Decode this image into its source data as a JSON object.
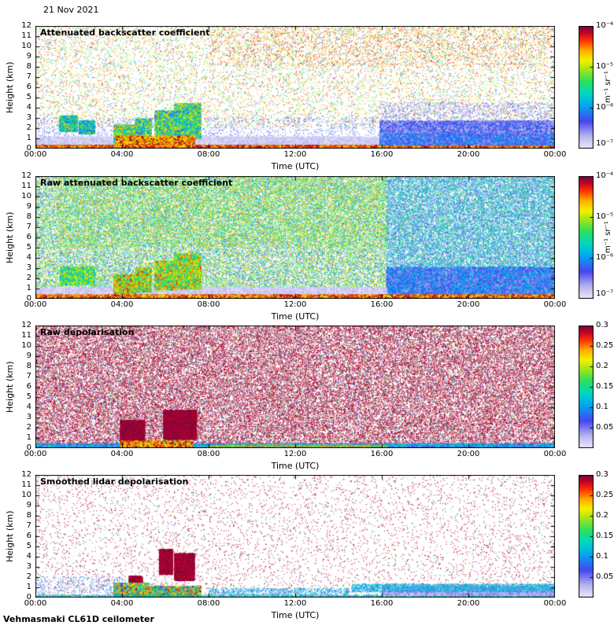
{
  "page": {
    "date": "21 Nov 2021",
    "footer": "Vehmasmaki CL61D ceilometer"
  },
  "colormap": {
    "anchors": [
      {
        "t": 0.0,
        "color": "#eae8fb"
      },
      {
        "t": 0.1,
        "color": "#b6b2ee"
      },
      {
        "t": 0.22,
        "color": "#4646f0"
      },
      {
        "t": 0.35,
        "color": "#00a8f0"
      },
      {
        "t": 0.45,
        "color": "#00d8c0"
      },
      {
        "t": 0.55,
        "color": "#2ce05c"
      },
      {
        "t": 0.65,
        "color": "#a6e616"
      },
      {
        "t": 0.72,
        "color": "#f2f200"
      },
      {
        "t": 0.8,
        "color": "#ffae00"
      },
      {
        "t": 0.88,
        "color": "#ff3400"
      },
      {
        "t": 0.95,
        "color": "#c00028"
      },
      {
        "t": 1.0,
        "color": "#6e0a46"
      }
    ]
  },
  "chart_data": [
    {
      "type": "heatmap",
      "title": "Attenuated backscatter coefficient",
      "xlabel": "Time (UTC)",
      "ylabel": "Height (km)",
      "x_range_hours": [
        0,
        24
      ],
      "y_range_km": [
        0,
        12
      ],
      "x_ticks": [
        {
          "label": "00:00",
          "hour": 0
        },
        {
          "label": "04:00",
          "hour": 4
        },
        {
          "label": "08:00",
          "hour": 8
        },
        {
          "label": "12:00",
          "hour": 12
        },
        {
          "label": "16:00",
          "hour": 16
        },
        {
          "label": "20:00",
          "hour": 20
        },
        {
          "label": "00:00",
          "hour": 24
        }
      ],
      "y_ticks": [
        0,
        1,
        2,
        3,
        4,
        5,
        6,
        7,
        8,
        9,
        10,
        11,
        12
      ],
      "colorbar": {
        "scale": "log",
        "range": [
          1e-07,
          0.0001
        ],
        "label": "m⁻¹ sr⁻¹",
        "ticks": [
          {
            "label": "10⁻⁴",
            "value": 0.0001
          },
          {
            "label": "10⁻⁵",
            "value": 1e-05
          },
          {
            "label": "10⁻⁶",
            "value": 1e-06
          },
          {
            "label": "10⁻⁷",
            "value": 1e-07
          }
        ]
      },
      "seed": 11,
      "layers": [
        {
          "x": [
            0,
            24
          ],
          "y": [
            2,
            12
          ],
          "n": 9000,
          "t": [
            0.55,
            0.95
          ],
          "s": 1
        },
        {
          "x": [
            8,
            24
          ],
          "y": [
            8,
            12
          ],
          "n": 2500,
          "t": [
            0.7,
            1.0
          ],
          "s": 1
        },
        {
          "x": [
            0,
            24
          ],
          "y": [
            1.5,
            12
          ],
          "n": 2200,
          "t": [
            0.25,
            0.55
          ],
          "s": 1
        },
        {
          "x": [
            0,
            24
          ],
          "y": [
            1,
            12
          ],
          "n": 900,
          "t": [
            0.05,
            0.22
          ],
          "s": 1
        },
        {
          "x": [
            0,
            16
          ],
          "y": [
            0.8,
            3
          ],
          "n": 1600,
          "t": [
            0.1,
            0.3
          ],
          "s": 1
        },
        {
          "x": [
            0,
            16.2
          ],
          "y": [
            0.2,
            1.05
          ],
          "n": 7000,
          "t": [
            0.0,
            0.1
          ],
          "s": 2
        },
        {
          "x": [
            1.1,
            1.9
          ],
          "y": [
            1.6,
            3.1
          ],
          "n": 1800,
          "t": [
            0.2,
            0.7
          ],
          "s": 2
        },
        {
          "x": [
            2.0,
            2.7
          ],
          "y": [
            1.4,
            2.6
          ],
          "n": 1200,
          "t": [
            0.2,
            0.65
          ],
          "s": 2
        },
        {
          "x": [
            3.6,
            4.6
          ],
          "y": [
            0.4,
            2.2
          ],
          "n": 2600,
          "t": [
            0.3,
            0.85
          ],
          "s": 2
        },
        {
          "x": [
            4.6,
            5.3
          ],
          "y": [
            0.6,
            2.8
          ],
          "n": 1500,
          "t": [
            0.25,
            0.8
          ],
          "s": 2
        },
        {
          "x": [
            5.5,
            6.4
          ],
          "y": [
            0.8,
            3.6
          ],
          "n": 2400,
          "t": [
            0.25,
            0.8
          ],
          "s": 2
        },
        {
          "x": [
            6.4,
            7.6
          ],
          "y": [
            0.9,
            4.3
          ],
          "n": 2600,
          "t": [
            0.25,
            0.8
          ],
          "s": 2
        },
        {
          "x": [
            3.7,
            7.3
          ],
          "y": [
            0.0,
            1.1
          ],
          "n": 3200,
          "t": [
            0.65,
            1.0
          ],
          "s": 2
        },
        {
          "x": [
            0,
            16.2
          ],
          "y": [
            0,
            0.22
          ],
          "n": 4200,
          "t": [
            0.7,
            1.0
          ],
          "s": 2
        },
        {
          "x": [
            15.9,
            24
          ],
          "y": [
            0,
            2.6
          ],
          "n": 15000,
          "t": [
            0.07,
            0.3
          ],
          "s": 2
        },
        {
          "x": [
            15.9,
            24
          ],
          "y": [
            0,
            1.3
          ],
          "n": 8000,
          "t": [
            0.1,
            0.38
          ],
          "s": 2
        },
        {
          "x": [
            15.9,
            24
          ],
          "y": [
            2.6,
            4.5
          ],
          "n": 1200,
          "t": [
            0.07,
            0.25
          ],
          "s": 1
        },
        {
          "x": [
            15.9,
            24
          ],
          "y": [
            0,
            0.12
          ],
          "n": 1800,
          "t": [
            0.7,
            1.0
          ],
          "s": 2
        }
      ]
    },
    {
      "type": "heatmap",
      "title": "Raw attenuated backscatter coefficient",
      "xlabel": "Time (UTC)",
      "ylabel": "Height (km)",
      "x_range_hours": [
        0,
        24
      ],
      "y_range_km": [
        0,
        12
      ],
      "x_ticks": [
        {
          "label": "00:00",
          "hour": 0
        },
        {
          "label": "04:00",
          "hour": 4
        },
        {
          "label": "08:00",
          "hour": 8
        },
        {
          "label": "12:00",
          "hour": 12
        },
        {
          "label": "16:00",
          "hour": 16
        },
        {
          "label": "20:00",
          "hour": 20
        },
        {
          "label": "00:00",
          "hour": 24
        }
      ],
      "y_ticks": [
        0,
        1,
        2,
        3,
        4,
        5,
        6,
        7,
        8,
        9,
        10,
        11,
        12
      ],
      "colorbar": {
        "scale": "log",
        "range": [
          1e-07,
          0.0001
        ],
        "label": "m⁻¹ sr⁻¹",
        "ticks": [
          {
            "label": "10⁻⁴",
            "value": 0.0001
          },
          {
            "label": "10⁻⁵",
            "value": 1e-05
          },
          {
            "label": "10⁻⁶",
            "value": 1e-06
          },
          {
            "label": "10⁻⁷",
            "value": 1e-07
          }
        ]
      },
      "seed": 22,
      "layers": [
        {
          "x": [
            0,
            16.2
          ],
          "y": [
            0.9,
            12
          ],
          "n": 40000,
          "t": [
            0.18,
            0.78
          ],
          "s": 1
        },
        {
          "x": [
            1,
            16.2
          ],
          "y": [
            5,
            12
          ],
          "n": 10000,
          "t": [
            0.4,
            0.8
          ],
          "s": 1
        },
        {
          "x": [
            0,
            16.2
          ],
          "y": [
            1,
            12
          ],
          "n": 4000,
          "t": [
            0.6,
            0.9
          ],
          "s": 1
        },
        {
          "x": [
            16.2,
            24
          ],
          "y": [
            0.4,
            12
          ],
          "n": 30000,
          "t": [
            0.1,
            0.6
          ],
          "s": 1
        },
        {
          "x": [
            16.2,
            24
          ],
          "y": [
            0,
            3
          ],
          "n": 8000,
          "t": [
            0.1,
            0.4
          ],
          "s": 2
        },
        {
          "x": [
            0,
            16.2
          ],
          "y": [
            0.3,
            1.0
          ],
          "n": 5000,
          "t": [
            0,
            0.1
          ],
          "s": 2
        },
        {
          "x": [
            1.1,
            2.7
          ],
          "y": [
            1.3,
            3.0
          ],
          "n": 2000,
          "t": [
            0.35,
            0.8
          ],
          "s": 2
        },
        {
          "x": [
            3.6,
            4.6
          ],
          "y": [
            0.4,
            2.2
          ],
          "n": 2800,
          "t": [
            0.45,
            0.95
          ],
          "s": 2
        },
        {
          "x": [
            4.6,
            5.3
          ],
          "y": [
            0.6,
            2.9
          ],
          "n": 1600,
          "t": [
            0.4,
            0.9
          ],
          "s": 2
        },
        {
          "x": [
            5.5,
            6.4
          ],
          "y": [
            0.8,
            3.6
          ],
          "n": 2600,
          "t": [
            0.4,
            0.9
          ],
          "s": 2
        },
        {
          "x": [
            6.4,
            7.6
          ],
          "y": [
            0.9,
            4.3
          ],
          "n": 2800,
          "t": [
            0.4,
            0.9
          ],
          "s": 2
        },
        {
          "x": [
            0,
            24
          ],
          "y": [
            0,
            0.28
          ],
          "n": 6500,
          "t": [
            0.7,
            1.0
          ],
          "s": 2
        }
      ]
    },
    {
      "type": "heatmap",
      "title": "Raw depolarisation",
      "xlabel": "Time (UTC)",
      "ylabel": "Height (km)",
      "x_range_hours": [
        0,
        24
      ],
      "y_range_km": [
        0,
        12
      ],
      "x_ticks": [
        {
          "label": "00:00",
          "hour": 0
        },
        {
          "label": "04:00",
          "hour": 4
        },
        {
          "label": "08:00",
          "hour": 8
        },
        {
          "label": "12:00",
          "hour": 12
        },
        {
          "label": "16:00",
          "hour": 16
        },
        {
          "label": "20:00",
          "hour": 20
        },
        {
          "label": "00:00",
          "hour": 24
        }
      ],
      "y_ticks": [
        0,
        1,
        2,
        3,
        4,
        5,
        6,
        7,
        8,
        9,
        10,
        11,
        12
      ],
      "colorbar": {
        "scale": "linear",
        "range": [
          0,
          0.3
        ],
        "ticks": [
          {
            "label": "0.3",
            "value": 0.3
          },
          {
            "label": "0.25",
            "value": 0.25
          },
          {
            "label": "0.2",
            "value": 0.2
          },
          {
            "label": "0.15",
            "value": 0.15
          },
          {
            "label": "0.1",
            "value": 0.1
          },
          {
            "label": "0.05",
            "value": 0.05
          }
        ]
      },
      "seed": 33,
      "layers": [
        {
          "x": [
            0,
            24
          ],
          "y": [
            0.35,
            12
          ],
          "n": 56000,
          "t": [
            0.93,
            1.0
          ],
          "s": 1
        },
        {
          "x": [
            0,
            24
          ],
          "y": [
            0.35,
            12
          ],
          "n": 7000,
          "t": [
            0.05,
            0.7
          ],
          "s": 1
        },
        {
          "x": [
            3.9,
            5.0
          ],
          "y": [
            0.4,
            2.6
          ],
          "n": 3000,
          "t": [
            0.95,
            1.0
          ],
          "s": 2
        },
        {
          "x": [
            5.9,
            7.4
          ],
          "y": [
            0.8,
            3.6
          ],
          "n": 4200,
          "t": [
            0.95,
            1.0
          ],
          "s": 2
        },
        {
          "x": [
            0,
            24
          ],
          "y": [
            0,
            0.35
          ],
          "n": 6000,
          "t": [
            0.12,
            0.5
          ],
          "s": 2
        },
        {
          "x": [
            3.9,
            7.2
          ],
          "y": [
            0,
            0.6
          ],
          "n": 1800,
          "t": [
            0.6,
            1.0
          ],
          "s": 2
        },
        {
          "x": [
            8,
            16.2
          ],
          "y": [
            0,
            0.3
          ],
          "n": 1200,
          "t": [
            0.5,
            0.9
          ],
          "s": 1
        }
      ]
    },
    {
      "type": "heatmap",
      "title": "Smoothed lidar depolarisation",
      "xlabel": "Time (UTC)",
      "ylabel": "Height (km)",
      "x_range_hours": [
        0,
        24
      ],
      "y_range_km": [
        0,
        12
      ],
      "x_ticks": [
        {
          "label": "00:00",
          "hour": 0
        },
        {
          "label": "04:00",
          "hour": 4
        },
        {
          "label": "08:00",
          "hour": 8
        },
        {
          "label": "12:00",
          "hour": 12
        },
        {
          "label": "16:00",
          "hour": 16
        },
        {
          "label": "20:00",
          "hour": 20
        },
        {
          "label": "00:00",
          "hour": 24
        }
      ],
      "y_ticks": [
        0,
        1,
        2,
        3,
        4,
        5,
        6,
        7,
        8,
        9,
        10,
        11,
        12
      ],
      "colorbar": {
        "scale": "linear",
        "range": [
          0,
          0.3
        ],
        "ticks": [
          {
            "label": "0.3",
            "value": 0.3
          },
          {
            "label": "0.25",
            "value": 0.25
          },
          {
            "label": "0.2",
            "value": 0.2
          },
          {
            "label": "0.15",
            "value": 0.15
          },
          {
            "label": "0.1",
            "value": 0.1
          },
          {
            "label": "0.05",
            "value": 0.05
          }
        ]
      },
      "seed": 44,
      "layers": [
        {
          "x": [
            0,
            24
          ],
          "y": [
            0.3,
            12
          ],
          "n": 5200,
          "t": [
            0.93,
            1.0
          ],
          "s": 1
        },
        {
          "x": [
            0,
            24
          ],
          "y": [
            0.3,
            12
          ],
          "n": 700,
          "t": [
            0.2,
            0.7
          ],
          "s": 1
        },
        {
          "x": [
            5.7,
            6.3
          ],
          "y": [
            2.2,
            4.6
          ],
          "n": 1600,
          "t": [
            0.94,
            1.0
          ],
          "s": 2
        },
        {
          "x": [
            6.4,
            7.3
          ],
          "y": [
            1.6,
            4.2
          ],
          "n": 2200,
          "t": [
            0.94,
            1.0
          ],
          "s": 2
        },
        {
          "x": [
            4.3,
            4.9
          ],
          "y": [
            1.0,
            2.0
          ],
          "n": 500,
          "t": [
            0.94,
            1.0
          ],
          "s": 2
        },
        {
          "x": [
            3.6,
            5.2
          ],
          "y": [
            0,
            1.3
          ],
          "n": 2600,
          "t": [
            0.25,
            1.0
          ],
          "s": 2
        },
        {
          "x": [
            5.2,
            7.6
          ],
          "y": [
            0,
            1.0
          ],
          "n": 2200,
          "t": [
            0.25,
            1.0
          ],
          "s": 2
        },
        {
          "x": [
            0,
            24
          ],
          "y": [
            0,
            0.22
          ],
          "n": 2600,
          "t": [
            0.2,
            0.6
          ],
          "s": 1
        },
        {
          "x": [
            16,
            24
          ],
          "y": [
            0.15,
            1.0
          ],
          "n": 3000,
          "t": [
            0.04,
            0.18
          ],
          "s": 2
        },
        {
          "x": [
            14.6,
            24
          ],
          "y": [
            0.5,
            1.3
          ],
          "n": 3000,
          "t": [
            0.25,
            0.5
          ],
          "s": 1
        },
        {
          "x": [
            8,
            14.5
          ],
          "y": [
            0.2,
            0.9
          ],
          "n": 900,
          "t": [
            0.2,
            0.5
          ],
          "s": 1
        },
        {
          "x": [
            0,
            4
          ],
          "y": [
            0.3,
            2
          ],
          "n": 400,
          "t": [
            0.1,
            0.4
          ],
          "s": 1
        }
      ]
    }
  ]
}
